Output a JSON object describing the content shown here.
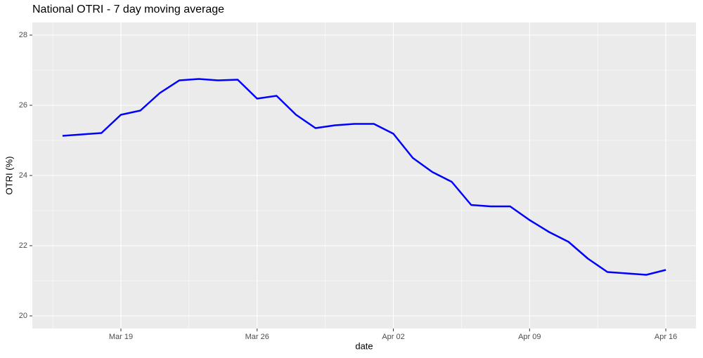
{
  "chart_data": {
    "type": "line",
    "title": "National OTRI - 7 day moving average",
    "x_label": "date",
    "y_label": "OTRI (%)",
    "categories": [
      null,
      null,
      null,
      "Mar 19",
      null,
      null,
      null,
      null,
      null,
      null,
      "Mar 26",
      null,
      null,
      null,
      null,
      null,
      null,
      "Apr 02",
      null,
      null,
      null,
      null,
      null,
      null,
      "Apr 09",
      null,
      null,
      null,
      null,
      null,
      null,
      "Apr 16"
    ],
    "series": [
      {
        "name": "OTRI",
        "color": "#0000ff",
        "values": [
          25.13,
          25.17,
          25.21,
          25.73,
          25.85,
          26.35,
          26.71,
          26.75,
          26.71,
          26.73,
          26.19,
          26.27,
          25.73,
          25.35,
          25.43,
          25.47,
          25.47,
          25.19,
          24.5,
          24.1,
          23.82,
          23.16,
          23.12,
          23.12,
          22.73,
          22.39,
          22.11,
          21.63,
          21.25,
          21.21,
          21.17,
          21.31
        ]
      }
    ],
    "ylim": [
      19.64,
      28.36
    ],
    "yticks": [
      20,
      22,
      24,
      26,
      28
    ],
    "grid": true
  }
}
